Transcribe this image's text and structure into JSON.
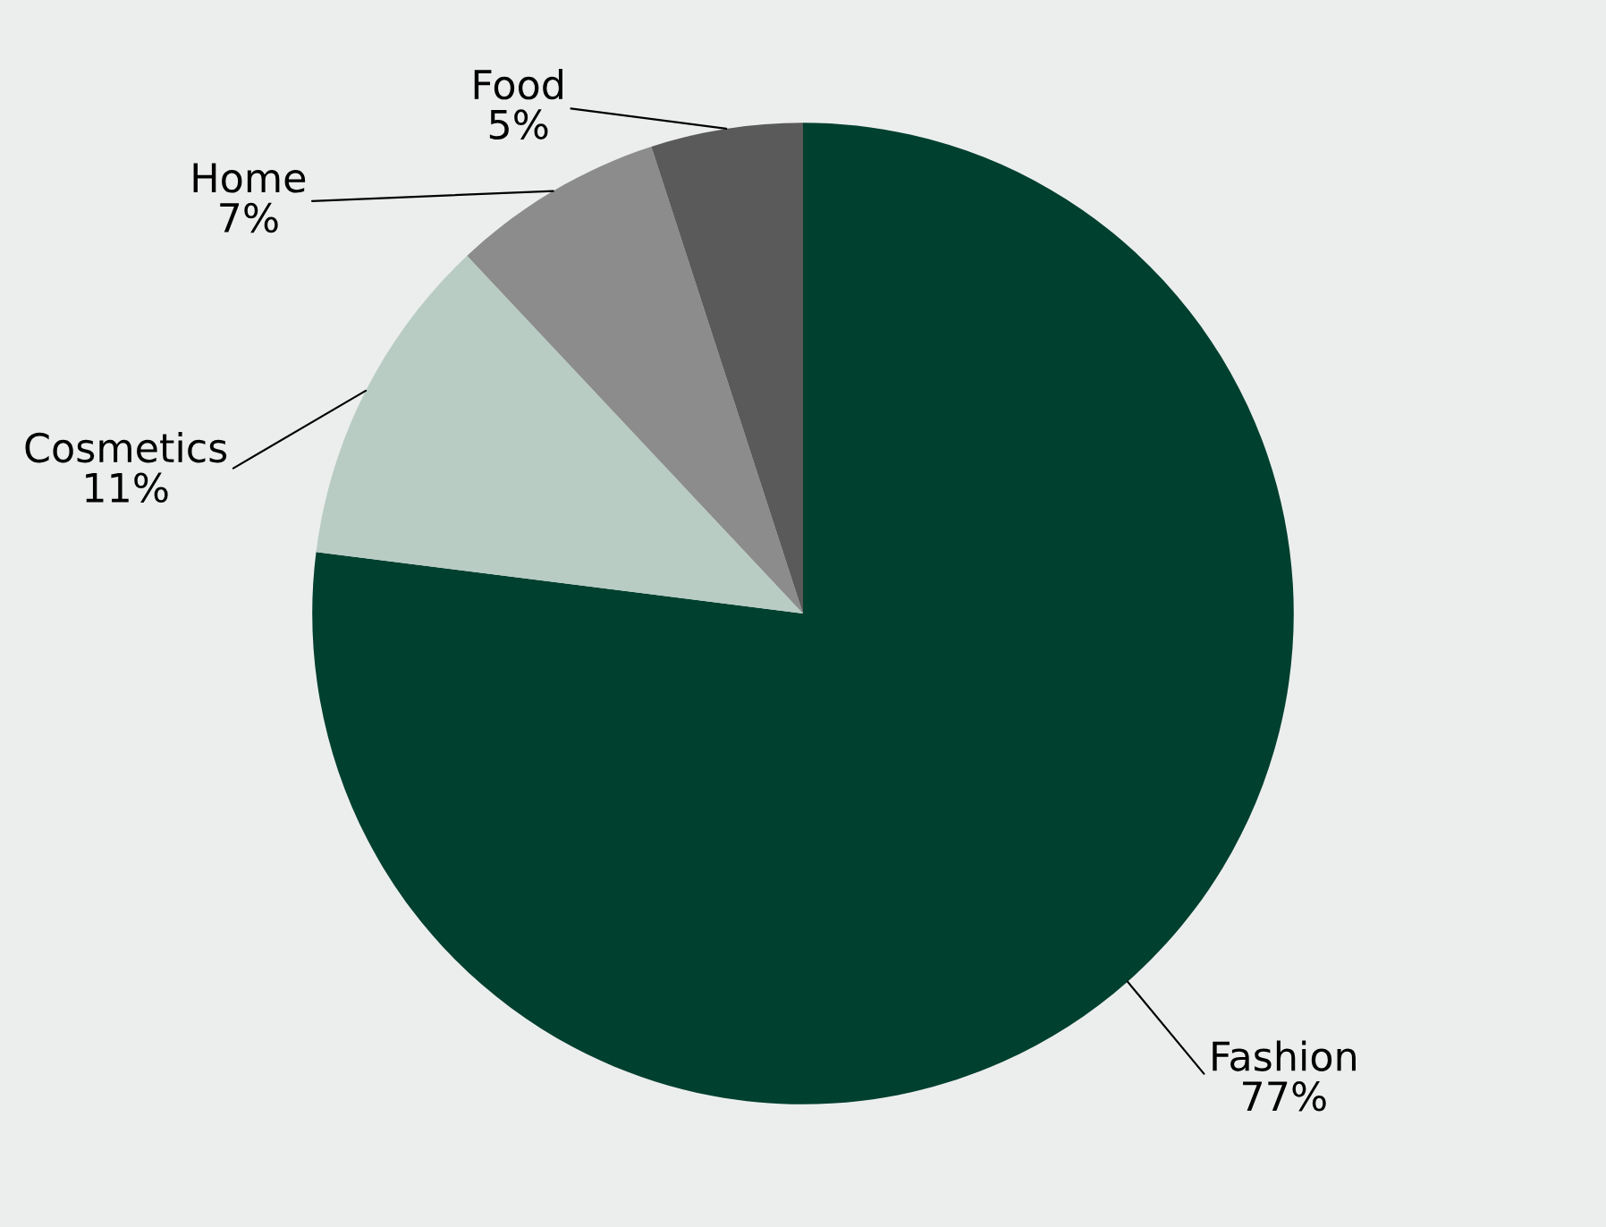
{
  "chart_data": {
    "type": "pie",
    "categories": [
      "Fashion",
      "Cosmetics",
      "Home",
      "Food"
    ],
    "values": [
      77,
      11,
      7,
      5
    ],
    "value_labels": [
      "77%",
      "11%",
      "7%",
      "5%"
    ],
    "colors": [
      "#00402f",
      "#b8ccc4",
      "#8c8c8c",
      "#5a5a5a"
    ],
    "legend": false
  }
}
